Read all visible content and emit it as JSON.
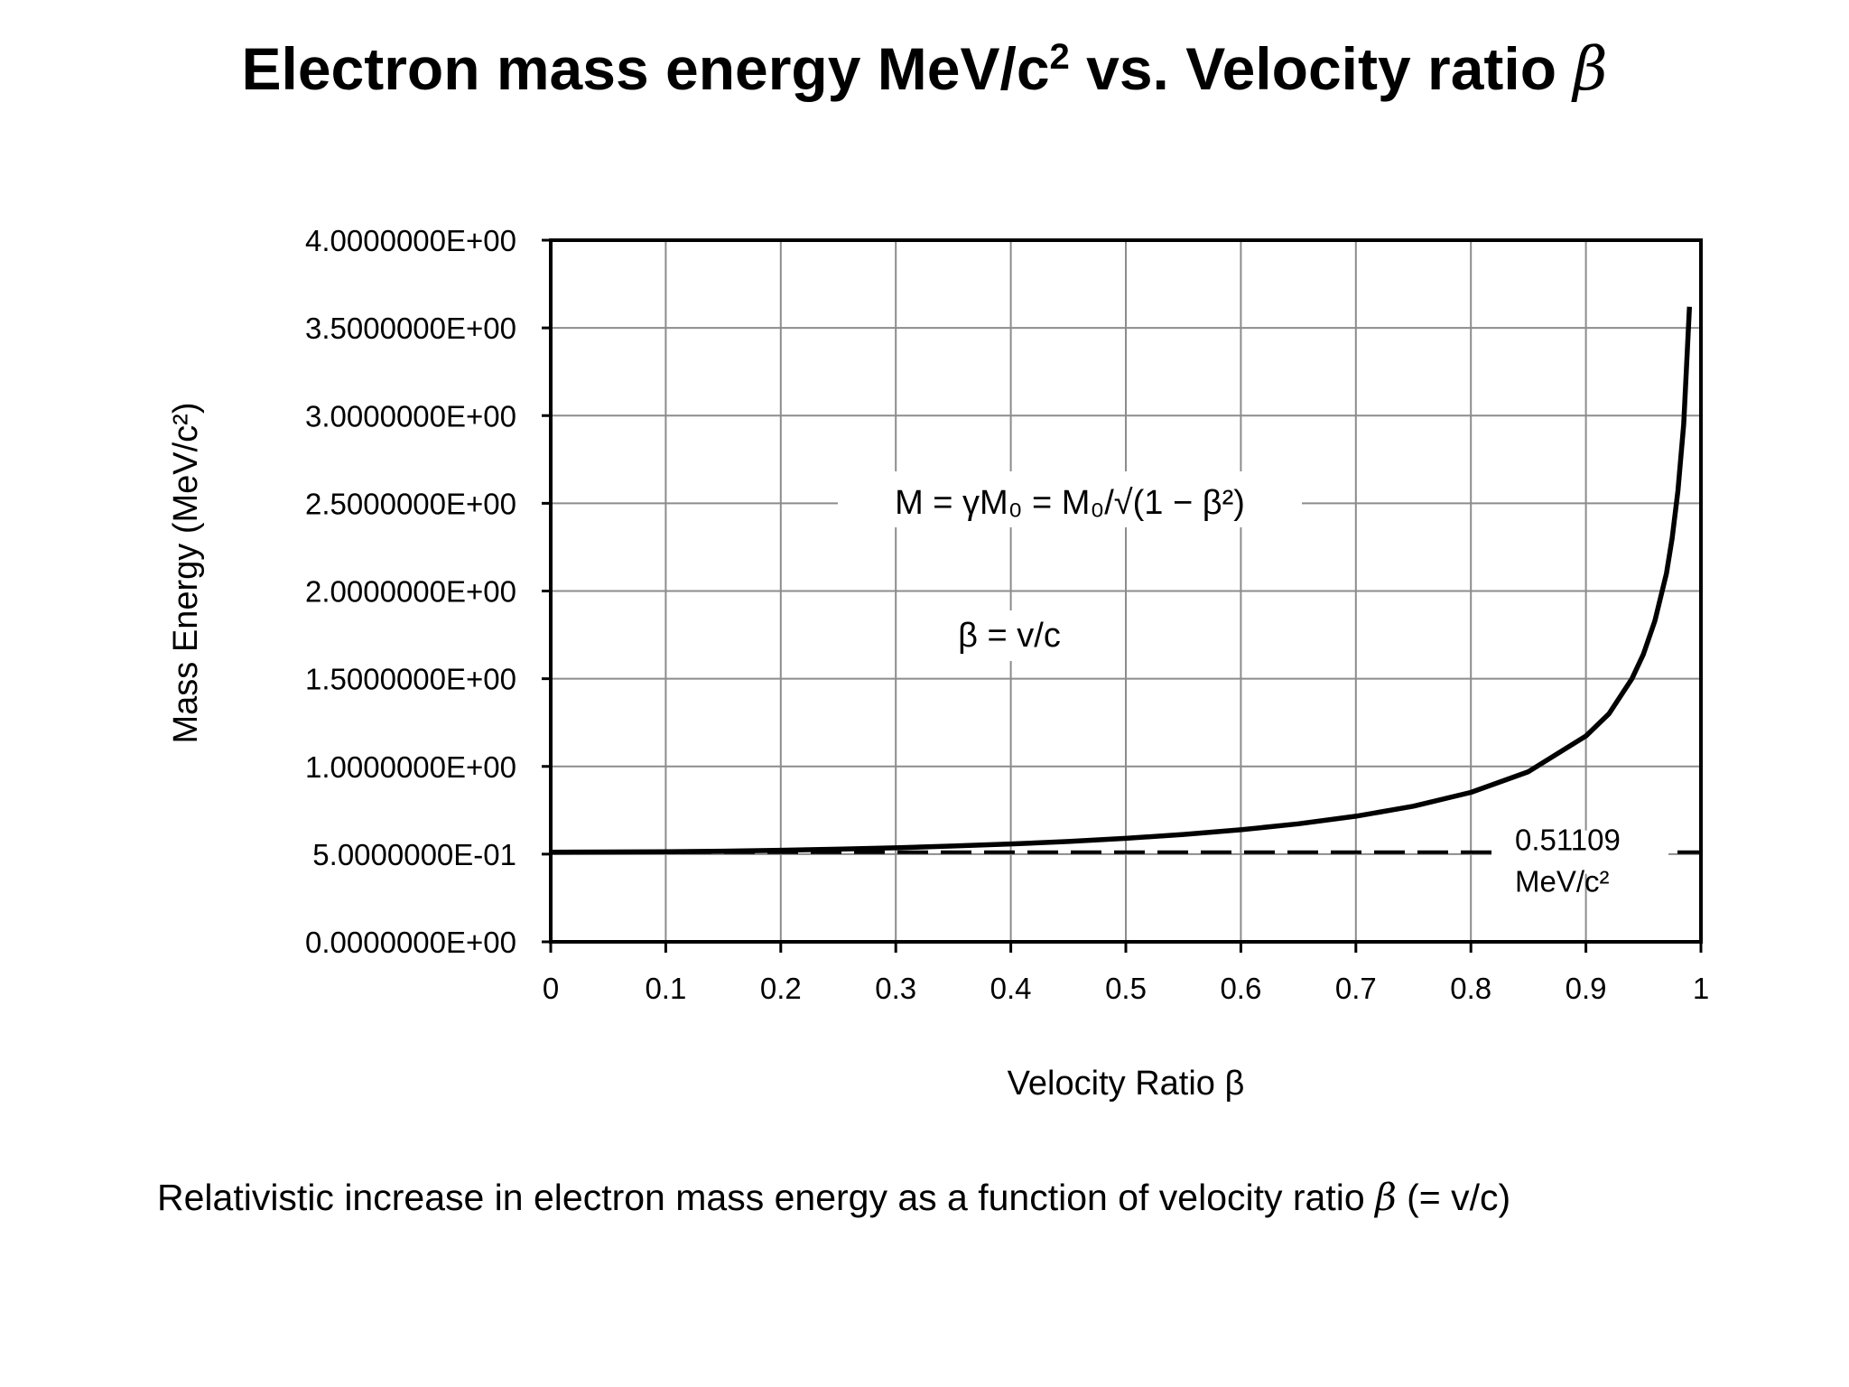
{
  "title": {
    "prefix": "Electron mass energy MeV/c",
    "sup": "2",
    "middle": " vs. Velocity ratio ",
    "symbol": "β"
  },
  "caption": {
    "text": "Relativistic increase in electron mass energy as a function of velocity ratio ",
    "symbol": "β",
    "suffix": " (= v/c)"
  },
  "chart_data": {
    "type": "line",
    "xlabel": "Velocity Ratio β",
    "ylabel": "Mass Energy (MeV/c²)",
    "xlim": [
      0,
      1
    ],
    "ylim": [
      0,
      4
    ],
    "x_ticks": [
      "0",
      "0.1",
      "0.2",
      "0.3",
      "0.4",
      "0.5",
      "0.6",
      "0.7",
      "0.8",
      "0.9",
      "1"
    ],
    "y_ticks": [
      "0.0000000E+00",
      "5.0000000E-01",
      "1.0000000E+00",
      "1.5000000E+00",
      "2.0000000E+00",
      "2.5000000E+00",
      "3.0000000E+00",
      "3.5000000E+00",
      "4.0000000E+00"
    ],
    "grid": true,
    "legend": "none",
    "series": [
      {
        "x": [
          0,
          0.05,
          0.1,
          0.15,
          0.2,
          0.25,
          0.3,
          0.35,
          0.4,
          0.45,
          0.5,
          0.55,
          0.6,
          0.65,
          0.7,
          0.75,
          0.8,
          0.85,
          0.9,
          0.92,
          0.94,
          0.95,
          0.96,
          0.97,
          0.975,
          0.98,
          0.985,
          0.99
        ],
        "y": [
          0.511,
          0.512,
          0.514,
          0.517,
          0.522,
          0.528,
          0.536,
          0.546,
          0.558,
          0.572,
          0.59,
          0.612,
          0.639,
          0.673,
          0.716,
          0.773,
          0.852,
          0.97,
          1.173,
          1.3,
          1.5,
          1.64,
          1.83,
          2.1,
          2.3,
          2.57,
          2.95,
          3.62
        ]
      }
    ],
    "reference_line": {
      "y": 0.51109,
      "style": "dashed",
      "label_value": "0.51109",
      "label_unit": "MeV/c²"
    },
    "annotations": {
      "formula": "M = γM₀ = M₀/√(1 − β²)",
      "beta_def": "β = v/c"
    }
  }
}
